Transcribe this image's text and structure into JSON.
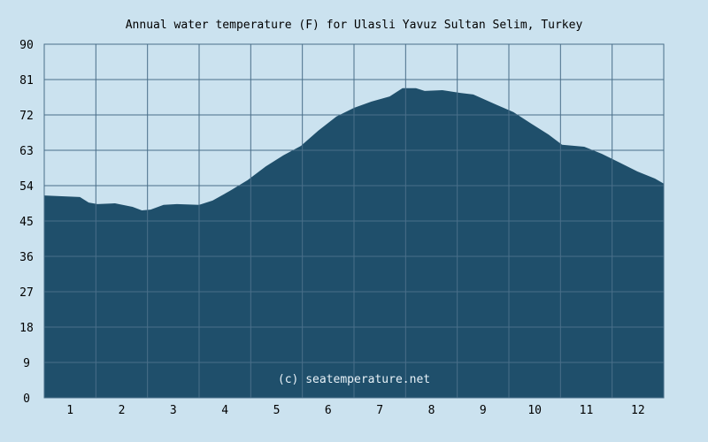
{
  "chart_data": {
    "type": "area",
    "title": "Annual water temperature (F) for Ulasli Yavuz Sultan Selim, Turkey",
    "xlabel": "",
    "ylabel": "",
    "watermark": "(c) seatemperature.net",
    "categories": [
      "1",
      "2",
      "3",
      "4",
      "5",
      "6",
      "7",
      "8",
      "9",
      "10",
      "11",
      "12"
    ],
    "xlim": [
      0.5,
      12.5
    ],
    "ylim": [
      0,
      90
    ],
    "yticks": [
      "0",
      "9",
      "18",
      "27",
      "36",
      "45",
      "54",
      "63",
      "72",
      "81",
      "90"
    ],
    "grid": true,
    "colors": {
      "fill": "#1f4f6b",
      "background": "#cbe2ef",
      "grid": "#4a6f8a"
    },
    "series": [
      {
        "name": "Water temperature (F)",
        "x": [
          0.5,
          0.84,
          1.19,
          1.36,
          1.53,
          1.87,
          2.21,
          2.39,
          2.56,
          2.81,
          3.07,
          3.5,
          3.76,
          4.1,
          4.44,
          4.79,
          5.13,
          5.47,
          5.81,
          6.16,
          6.5,
          6.84,
          7.19,
          7.44,
          7.7,
          7.87,
          8.21,
          8.56,
          8.81,
          9.24,
          9.59,
          9.93,
          10.27,
          10.53,
          10.96,
          11.3,
          11.64,
          11.99,
          12.33,
          12.5
        ],
        "y": [
          51.5,
          51.3,
          51.1,
          49.7,
          49.3,
          49.5,
          48.6,
          47.7,
          47.9,
          49.1,
          49.3,
          49.1,
          50.2,
          52.7,
          55.4,
          58.9,
          61.7,
          64.1,
          68.0,
          71.6,
          73.8,
          75.4,
          76.7,
          78.8,
          78.8,
          78.1,
          78.3,
          77.6,
          77.2,
          74.7,
          72.7,
          69.8,
          67.0,
          64.4,
          63.9,
          62.1,
          59.9,
          57.6,
          55.8,
          54.5
        ]
      }
    ]
  }
}
